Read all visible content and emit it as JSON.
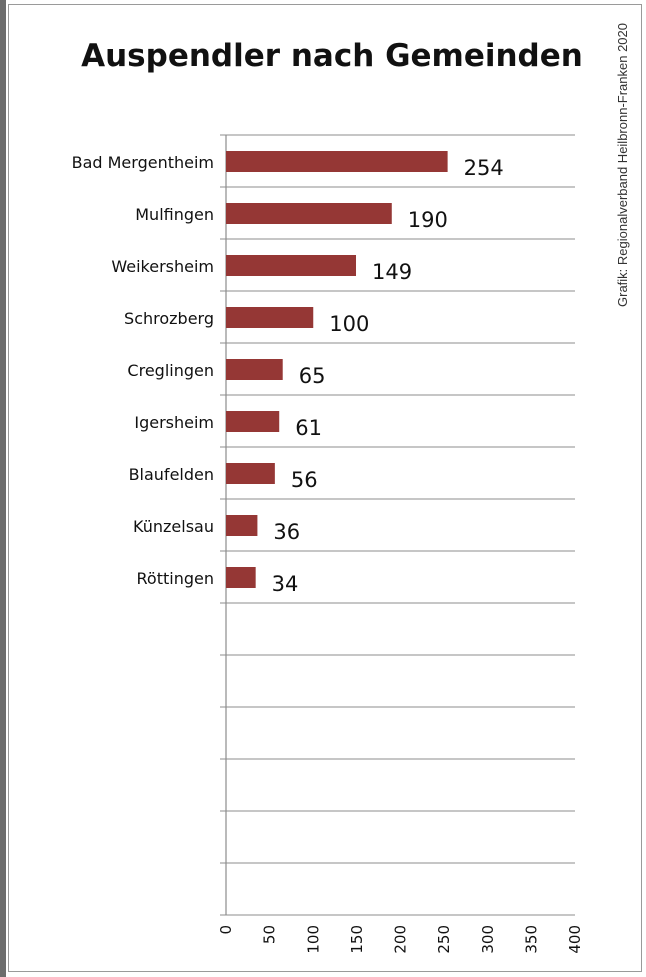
{
  "credit": "Grafik: Regionalverband Heilbronn-Franken 2020",
  "chart_data": {
    "type": "bar",
    "orientation": "horizontal",
    "title": "Auspendler nach Gemeinden",
    "categories": [
      "Bad Mergentheim",
      "Mulfingen",
      "Weikersheim",
      "Schrozberg",
      "Creglingen",
      "Igersheim",
      "Blaufelden",
      "Künzelsau",
      "Röttingen"
    ],
    "values": [
      254,
      190,
      149,
      100,
      65,
      61,
      56,
      36,
      34
    ],
    "data_labels": [
      "254",
      "190",
      "149",
      "100",
      "65",
      "61",
      "56",
      "36",
      "34"
    ],
    "xlim": [
      0,
      400
    ],
    "ticks": [
      "0",
      "50",
      "100",
      "150",
      "200",
      "250",
      "300",
      "350",
      "400"
    ],
    "grid": "horizontal",
    "bar_color": "#953735"
  }
}
